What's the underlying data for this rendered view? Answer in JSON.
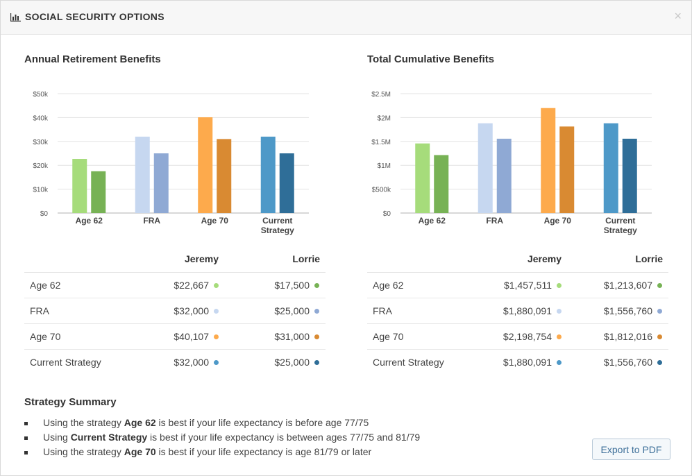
{
  "header": {
    "title": "SOCIAL SECURITY OPTIONS",
    "icon": "bar-chart-icon",
    "close_label": "×"
  },
  "charts": {
    "annual": {
      "title": "Annual Retirement Benefits"
    },
    "cumulative": {
      "title": "Total Cumulative Benefits"
    }
  },
  "chart_data": [
    {
      "type": "bar",
      "title": "Annual Retirement Benefits",
      "categories": [
        "Age 62",
        "FRA",
        "Age 70",
        "Current Strategy"
      ],
      "series": [
        {
          "name": "Jeremy",
          "values": [
            22667,
            32000,
            40107,
            32000
          ],
          "colors": [
            "#a6dc7b",
            "#c6d7f0",
            "#fdaa4c",
            "#4e99c8"
          ]
        },
        {
          "name": "Lorrie",
          "values": [
            17500,
            25000,
            31000,
            25000
          ],
          "colors": [
            "#77b255",
            "#8fa9d4",
            "#d98a32",
            "#2f6e98"
          ]
        }
      ],
      "yticks": [
        "$0",
        "$10k",
        "$20k",
        "$30k",
        "$40k",
        "$50k"
      ],
      "ylim": [
        0,
        50000
      ],
      "grid": true
    },
    {
      "type": "bar",
      "title": "Total Cumulative Benefits",
      "categories": [
        "Age 62",
        "FRA",
        "Age 70",
        "Current Strategy"
      ],
      "series": [
        {
          "name": "Jeremy",
          "values": [
            1457511,
            1880091,
            2198754,
            1880091
          ],
          "colors": [
            "#a6dc7b",
            "#c6d7f0",
            "#fdaa4c",
            "#4e99c8"
          ]
        },
        {
          "name": "Lorrie",
          "values": [
            1213607,
            1556760,
            1812016,
            1556760
          ],
          "colors": [
            "#77b255",
            "#8fa9d4",
            "#d98a32",
            "#2f6e98"
          ]
        }
      ],
      "yticks": [
        "$0",
        "$500k",
        "$1M",
        "$1.5M",
        "$2M",
        "$2.5M"
      ],
      "ylim": [
        0,
        2500000
      ],
      "grid": true
    }
  ],
  "tables": {
    "annual": {
      "headers": [
        "Jeremy",
        "Lorrie"
      ],
      "rows": [
        {
          "label": "Age 62",
          "jeremy": "$22,667",
          "lorrie": "$17,500",
          "jeremy_color": "#a6dc7b",
          "lorrie_color": "#77b255"
        },
        {
          "label": "FRA",
          "jeremy": "$32,000",
          "lorrie": "$25,000",
          "jeremy_color": "#c6d7f0",
          "lorrie_color": "#8fa9d4"
        },
        {
          "label": "Age 70",
          "jeremy": "$40,107",
          "lorrie": "$31,000",
          "jeremy_color": "#fdaa4c",
          "lorrie_color": "#d98a32"
        },
        {
          "label": "Current Strategy",
          "jeremy": "$32,000",
          "lorrie": "$25,000",
          "jeremy_color": "#4e99c8",
          "lorrie_color": "#2f6e98"
        }
      ]
    },
    "cumulative": {
      "headers": [
        "Jeremy",
        "Lorrie"
      ],
      "rows": [
        {
          "label": "Age 62",
          "jeremy": "$1,457,511",
          "lorrie": "$1,213,607",
          "jeremy_color": "#a6dc7b",
          "lorrie_color": "#77b255"
        },
        {
          "label": "FRA",
          "jeremy": "$1,880,091",
          "lorrie": "$1,556,760",
          "jeremy_color": "#c6d7f0",
          "lorrie_color": "#8fa9d4"
        },
        {
          "label": "Age 70",
          "jeremy": "$2,198,754",
          "lorrie": "$1,812,016",
          "jeremy_color": "#fdaa4c",
          "lorrie_color": "#d98a32"
        },
        {
          "label": "Current Strategy",
          "jeremy": "$1,880,091",
          "lorrie": "$1,556,760",
          "jeremy_color": "#4e99c8",
          "lorrie_color": "#2f6e98"
        }
      ]
    }
  },
  "summary": {
    "title": "Strategy Summary",
    "items": [
      {
        "pre": "Using the strategy ",
        "bold": "Age 62",
        "post": " is best if your life expectancy is before age 77/75"
      },
      {
        "pre": "Using ",
        "bold": "Current Strategy",
        "post": " is best if your life expectancy is between ages 77/75 and 81/79"
      },
      {
        "pre": "Using the strategy ",
        "bold": "Age 70",
        "post": " is best if your life expectancy is age 81/79 or later"
      }
    ]
  },
  "export_label": "Export to PDF"
}
